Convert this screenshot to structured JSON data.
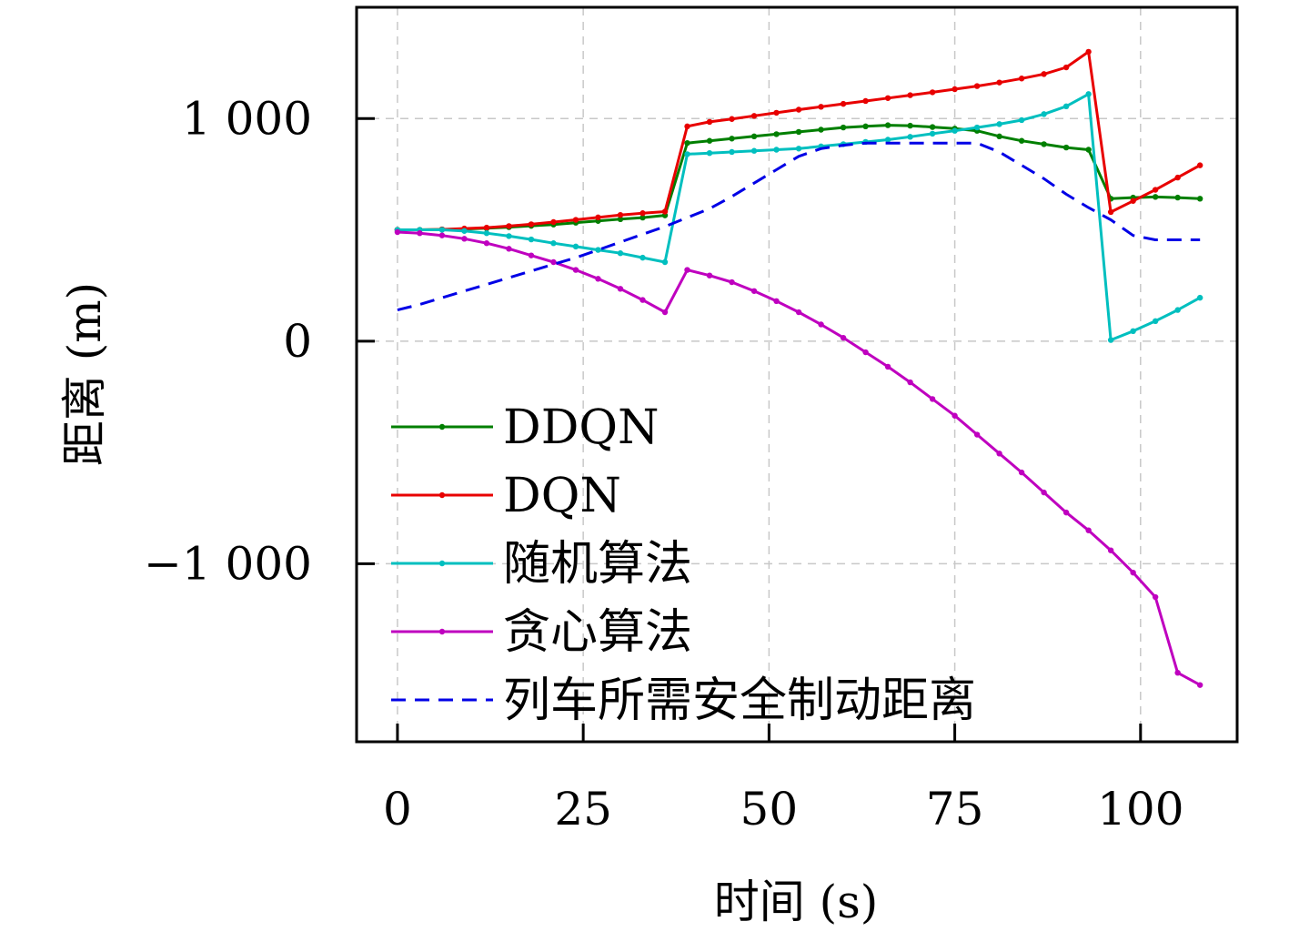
{
  "chart_data": {
    "type": "line",
    "xlabel": "时间 (s)",
    "ylabel": "距离 (m)",
    "xlim": [
      -5.5,
      113
    ],
    "ylim": [
      -1800,
      1500
    ],
    "x_ticks": [
      0,
      25,
      50,
      75,
      100
    ],
    "x_tick_labels": [
      "0",
      "25",
      "50",
      "75",
      "100"
    ],
    "y_ticks": [
      -1000,
      0,
      1000
    ],
    "y_tick_labels": [
      "−1 000",
      "0",
      "1 000"
    ],
    "grid": true,
    "legend_position": "lower-left",
    "series": [
      {
        "name": "DDQN",
        "color": "#007f00",
        "dashed": false,
        "marker": true,
        "x": [
          0,
          3,
          6,
          9,
          12,
          15,
          18,
          21,
          24,
          27,
          30,
          33,
          36,
          39,
          42,
          45,
          48,
          51,
          54,
          57,
          60,
          63,
          66,
          69,
          72,
          75,
          78,
          81,
          84,
          87,
          90,
          93,
          96,
          99,
          102,
          105,
          108
        ],
        "y": [
          500,
          500,
          502,
          504,
          507,
          512,
          518,
          524,
          532,
          540,
          548,
          555,
          565,
          890,
          900,
          910,
          920,
          930,
          940,
          950,
          960,
          965,
          970,
          968,
          962,
          955,
          945,
          920,
          900,
          885,
          870,
          860,
          640,
          645,
          648,
          645,
          640
        ]
      },
      {
        "name": "DQN",
        "color": "#e80000",
        "dashed": false,
        "marker": true,
        "x": [
          0,
          3,
          6,
          9,
          12,
          15,
          18,
          21,
          24,
          27,
          30,
          33,
          36,
          39,
          42,
          45,
          48,
          51,
          54,
          57,
          60,
          63,
          66,
          69,
          72,
          75,
          78,
          81,
          84,
          87,
          90,
          93,
          96,
          99,
          102,
          105,
          108
        ],
        "y": [
          500,
          500,
          502,
          506,
          510,
          517,
          525,
          535,
          545,
          556,
          567,
          575,
          582,
          965,
          985,
          998,
          1012,
          1026,
          1040,
          1053,
          1066,
          1079,
          1092,
          1105,
          1118,
          1132,
          1146,
          1162,
          1180,
          1200,
          1230,
          1300,
          580,
          630,
          680,
          735,
          790
        ]
      },
      {
        "name": "随机算法",
        "color": "#00bfbf",
        "dashed": false,
        "marker": true,
        "x": [
          0,
          3,
          6,
          9,
          12,
          15,
          18,
          21,
          24,
          27,
          30,
          33,
          36,
          39,
          42,
          45,
          48,
          51,
          54,
          57,
          60,
          63,
          66,
          69,
          72,
          75,
          78,
          81,
          84,
          87,
          90,
          93,
          96,
          99,
          102,
          105,
          108
        ],
        "y": [
          500,
          500,
          500,
          495,
          485,
          472,
          457,
          440,
          425,
          410,
          395,
          375,
          355,
          840,
          845,
          850,
          855,
          860,
          865,
          875,
          885,
          895,
          905,
          918,
          932,
          945,
          960,
          975,
          993,
          1020,
          1055,
          1110,
          5,
          45,
          90,
          140,
          195
        ]
      },
      {
        "name": "贪心算法",
        "color": "#bf00bf",
        "dashed": false,
        "marker": true,
        "x": [
          0,
          3,
          6,
          9,
          12,
          15,
          18,
          21,
          24,
          27,
          30,
          33,
          36,
          39,
          42,
          45,
          48,
          51,
          54,
          57,
          60,
          63,
          66,
          69,
          72,
          75,
          78,
          81,
          84,
          87,
          90,
          93,
          96,
          99,
          102,
          105,
          108
        ],
        "y": [
          490,
          485,
          475,
          460,
          440,
          415,
          385,
          355,
          320,
          280,
          235,
          185,
          130,
          320,
          295,
          265,
          225,
          180,
          130,
          75,
          15,
          -50,
          -115,
          -185,
          -260,
          -335,
          -420,
          -505,
          -590,
          -680,
          -770,
          -850,
          -940,
          -1040,
          -1150,
          -1490,
          -1545
        ]
      },
      {
        "name": "列车所需安全制动距离",
        "color": "#0000e6",
        "dashed": true,
        "marker": false,
        "x": [
          0,
          3,
          6,
          9,
          12,
          15,
          18,
          21,
          24,
          27,
          30,
          33,
          36,
          39,
          42,
          45,
          48,
          51,
          54,
          57,
          60,
          63,
          66,
          69,
          72,
          75,
          78,
          81,
          84,
          87,
          90,
          93,
          96,
          99,
          102,
          105,
          108
        ],
        "y": [
          140,
          165,
          195,
          225,
          255,
          285,
          315,
          345,
          375,
          410,
          445,
          480,
          515,
          555,
          595,
          650,
          710,
          770,
          830,
          865,
          880,
          890,
          890,
          890,
          890,
          890,
          890,
          850,
          790,
          730,
          660,
          600,
          545,
          475,
          455,
          455,
          455
        ]
      }
    ]
  }
}
